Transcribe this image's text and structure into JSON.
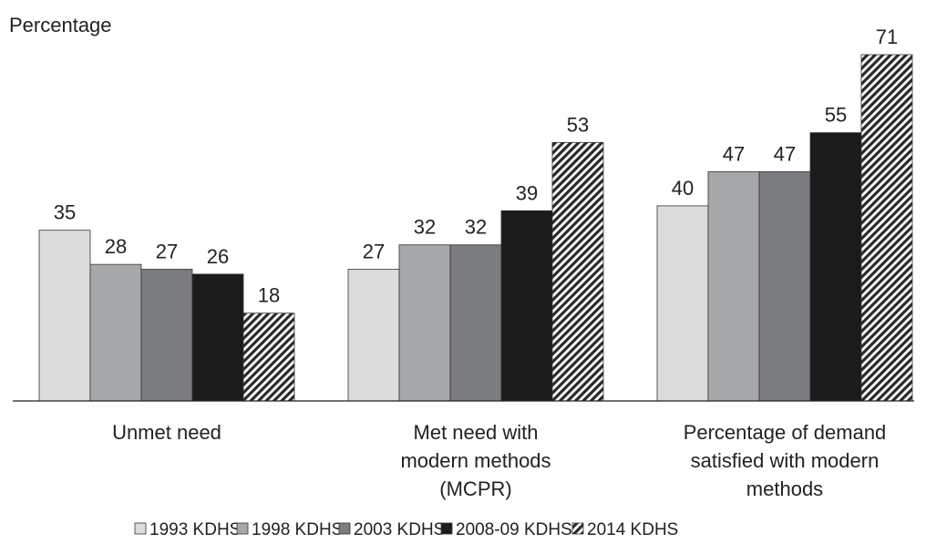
{
  "chart_data": {
    "type": "bar",
    "ylabel": "Percentage",
    "categories": [
      [
        "Unmet need"
      ],
      [
        "Met need with",
        "modern methods",
        "(MCPR)"
      ],
      [
        "Percentage of demand",
        "satisfied with modern",
        "methods"
      ]
    ],
    "series": [
      {
        "name": "1993 KDHS",
        "values": [
          35,
          27,
          40
        ],
        "color": "#dcdcdd",
        "pattern": "solid"
      },
      {
        "name": "1998 KDHS",
        "values": [
          28,
          32,
          47
        ],
        "color": "#a7a8aa",
        "pattern": "solid"
      },
      {
        "name": "2003 KDHS",
        "values": [
          27,
          32,
          47
        ],
        "color": "#7b7c7f",
        "pattern": "solid"
      },
      {
        "name": "2008-09 KDHS",
        "values": [
          26,
          39,
          55
        ],
        "color": "#1b1b1b",
        "pattern": "solid"
      },
      {
        "name": "2014 KDHS",
        "values": [
          18,
          53,
          71
        ],
        "color": "#2a2a2a",
        "pattern": "diagonal-hatch"
      }
    ],
    "ylim": [
      0,
      71
    ],
    "grid": false,
    "legend": "bottom-center"
  }
}
